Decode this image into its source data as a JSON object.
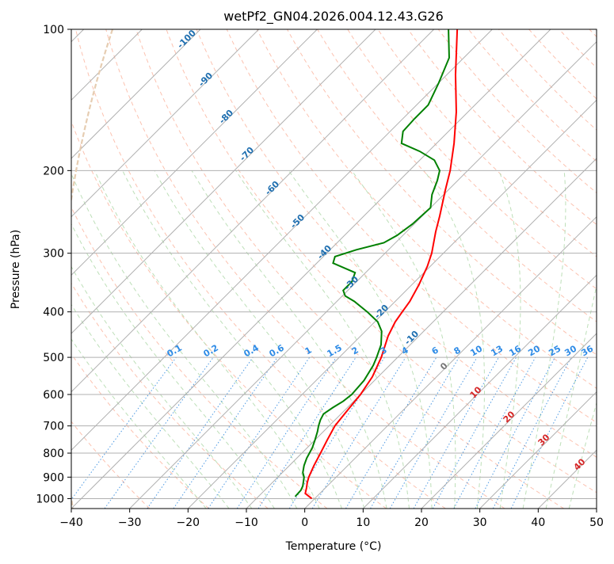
{
  "chart_data": {
    "type": "line",
    "title": "wetPf2_GN04.2026.004.12.43.G26",
    "xlabel": "Temperature (°C)",
    "ylabel": "Pressure (hPa)",
    "xlim": [
      -40,
      50
    ],
    "ylim": [
      1050,
      100
    ],
    "y_scale": "log",
    "x_ticks": [
      "−40",
      "−30",
      "−20",
      "−10",
      "0",
      "10",
      "20",
      "30",
      "40",
      "50"
    ],
    "y_ticks": [
      "100",
      "200",
      "300",
      "400",
      "500",
      "600",
      "700",
      "800",
      "900",
      "1000"
    ],
    "grid": true,
    "series": [
      {
        "color": "#ff0000",
        "points": [
          [
            1000,
            -0.5
          ],
          [
            975,
            -2.5
          ],
          [
            950,
            -3.2
          ],
          [
            925,
            -4.0
          ],
          [
            900,
            -4.7
          ],
          [
            850,
            -5.8
          ],
          [
            800,
            -6.8
          ],
          [
            750,
            -7.9
          ],
          [
            700,
            -9.0
          ],
          [
            650,
            -9.5
          ],
          [
            600,
            -10.0
          ],
          [
            550,
            -11.0
          ],
          [
            500,
            -12.8
          ],
          [
            450,
            -15.3
          ],
          [
            420,
            -16.5
          ],
          [
            400,
            -17.0
          ],
          [
            380,
            -17.5
          ],
          [
            350,
            -18.8
          ],
          [
            320,
            -20.5
          ],
          [
            300,
            -22.0
          ],
          [
            270,
            -25.0
          ],
          [
            250,
            -27.0
          ],
          [
            220,
            -30.5
          ],
          [
            200,
            -33.0
          ],
          [
            175,
            -37.0
          ],
          [
            150,
            -42.0
          ],
          [
            125,
            -48.5
          ],
          [
            100,
            -56.0
          ]
        ]
      },
      {
        "color": "#008000",
        "points": [
          [
            990,
            -3.7
          ],
          [
            960,
            -3.8
          ],
          [
            940,
            -4.2
          ],
          [
            900,
            -5.5
          ],
          [
            880,
            -6.5
          ],
          [
            850,
            -7.5
          ],
          [
            820,
            -8.3
          ],
          [
            780,
            -9.1
          ],
          [
            750,
            -10.0
          ],
          [
            720,
            -11.0
          ],
          [
            700,
            -11.8
          ],
          [
            680,
            -12.5
          ],
          [
            660,
            -13.0
          ],
          [
            640,
            -12.5
          ],
          [
            620,
            -11.8
          ],
          [
            600,
            -11.5
          ],
          [
            560,
            -11.8
          ],
          [
            520,
            -12.8
          ],
          [
            500,
            -13.6
          ],
          [
            470,
            -15.0
          ],
          [
            440,
            -17.2
          ],
          [
            420,
            -19.5
          ],
          [
            400,
            -23.0
          ],
          [
            380,
            -27.0
          ],
          [
            370,
            -29.5
          ],
          [
            360,
            -30.8
          ],
          [
            345,
            -30.8
          ],
          [
            330,
            -31.8
          ],
          [
            315,
            -37.2
          ],
          [
            305,
            -38.0
          ],
          [
            295,
            -35.5
          ],
          [
            285,
            -32.0
          ],
          [
            275,
            -31.0
          ],
          [
            260,
            -30.3
          ],
          [
            240,
            -30.0
          ],
          [
            225,
            -32.0
          ],
          [
            210,
            -33.5
          ],
          [
            200,
            -34.8
          ],
          [
            190,
            -37.5
          ],
          [
            182,
            -41.5
          ],
          [
            175,
            -46.0
          ],
          [
            165,
            -47.8
          ],
          [
            155,
            -48.0
          ],
          [
            145,
            -48.0
          ],
          [
            130,
            -50.0
          ],
          [
            115,
            -52.5
          ],
          [
            100,
            -57.5
          ]
        ]
      }
    ],
    "dry_adiabat_labels": [
      "-100",
      "-90",
      "-80",
      "-70",
      "-60",
      "-50",
      "-40",
      "-30",
      "-20",
      "-10",
      "0",
      "10",
      "20",
      "30",
      "40"
    ],
    "mixing_ratio_labels": [
      "0.1",
      "0.2",
      "0.4",
      "0.6",
      "1",
      "1.5",
      "2",
      "3",
      "4",
      "6",
      "8",
      "10",
      "13",
      "16",
      "20",
      "25",
      "30",
      "36"
    ],
    "colors": {
      "isobar": "#b0b0b0",
      "isotherm": "#b0b0b0",
      "dry_adiabat": "#fbb39c",
      "moist_adiabat": "#b6dbb0",
      "mixing_ratio": "#3b8fe0",
      "dry_adiabat_label": "#1f6fb0",
      "mixing_ratio_label": "#2e8be6",
      "warm_label": "#d62728",
      "zero_label": "#777777",
      "lcl_curve": "#e6cdb2"
    }
  }
}
